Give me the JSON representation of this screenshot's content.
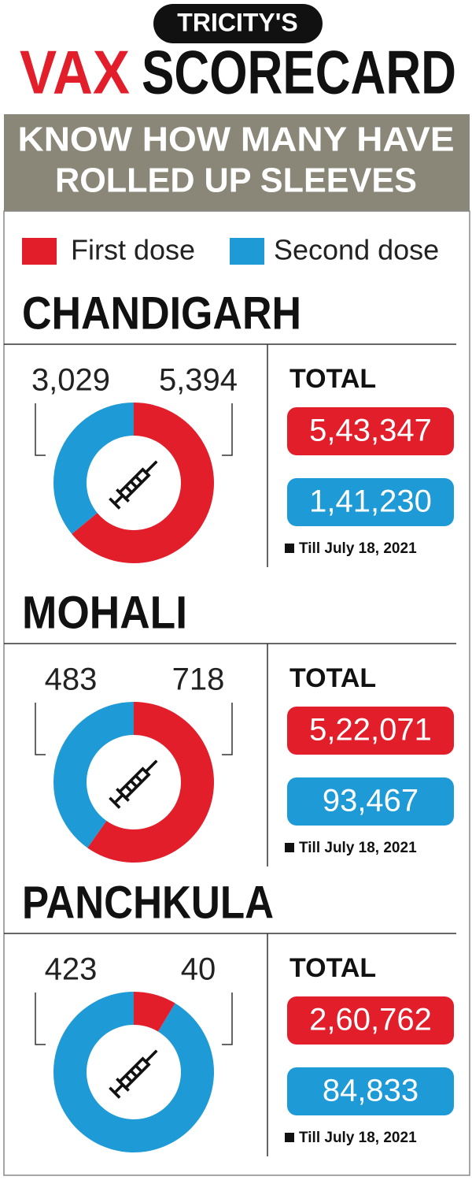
{
  "header": {
    "kicker": "TRICITY'S",
    "title_red": "VAX",
    "title_black": "SCORECARD",
    "subtitle": [
      "KNOW HOW MANY HAVE",
      "ROLLED UP SLEEVES"
    ]
  },
  "legend": {
    "labels": [
      "First dose",
      "Second dose"
    ],
    "colors": [
      "#e31e2b",
      "#1e9ad6"
    ]
  },
  "chart_data": [
    {
      "type": "donut",
      "title": "CHANDIGARH",
      "values": [
        5394,
        3029
      ],
      "value_labels": [
        "5,394",
        "3,029"
      ],
      "total_label": "TOTAL",
      "totals": [
        543347,
        141230
      ],
      "total_labels": [
        "5,43,347",
        "1,41,230"
      ],
      "note": "Till July 18, 2021"
    },
    {
      "type": "donut",
      "title": "MOHALI",
      "values": [
        718,
        483
      ],
      "total_label": "TOTAL",
      "totals": [
        522071,
        93467
      ],
      "total_labels": [
        "5,22,071",
        "93,467"
      ],
      "note": "Till July 18, 2021"
    },
    {
      "type": "donut",
      "title": "PANCHKULA",
      "values": [
        40,
        423
      ],
      "total_label": "TOTAL",
      "totals": [
        260762,
        84833
      ],
      "total_labels": [
        "2,60,762",
        "84,833"
      ],
      "note": "Till July 18, 2021"
    }
  ]
}
